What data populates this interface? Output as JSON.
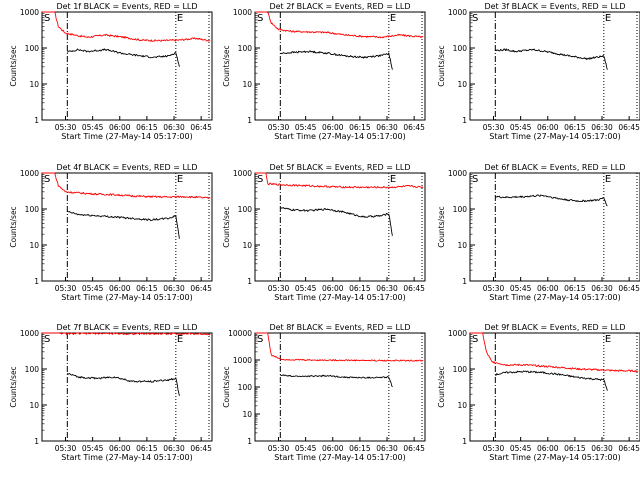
{
  "page": {
    "background": "#ffffff",
    "axis_color": "#000000",
    "events_color": "#000000",
    "lld_color": "#ff0000"
  },
  "x_tick_labels": [
    "05:30",
    "05:45",
    "06:00",
    "06:15",
    "06:30",
    "06:45"
  ],
  "x_axis_label": "Start Time (27-May-14 05:17:00)",
  "y_axis_label": "Counts/sec",
  "marker_start": "S",
  "marker_end": "E",
  "chart_data": [
    {
      "type": "line",
      "title": "Det 1f BLACK = Events, RED = LLD",
      "x_range_minutes": [
        0,
        94
      ],
      "ylim": [
        1,
        1000
      ],
      "y_scale": "log",
      "y_tick_labels": [
        "1",
        "10",
        "100",
        "1000"
      ],
      "start_marker_minute": 14,
      "end_marker_minute": 74,
      "series": [
        {
          "color": "red",
          "points": [
            [
              0,
              1000
            ],
            [
              7,
              1000
            ],
            [
              9,
              400
            ],
            [
              13,
              260
            ],
            [
              20,
              220
            ],
            [
              25,
              200
            ],
            [
              35,
              230
            ],
            [
              45,
              200
            ],
            [
              55,
              165
            ],
            [
              65,
              160
            ],
            [
              75,
              165
            ],
            [
              85,
              185
            ],
            [
              93,
              160
            ]
          ]
        },
        {
          "color": "black",
          "points": [
            [
              14,
              78
            ],
            [
              20,
              90
            ],
            [
              25,
              80
            ],
            [
              35,
              90
            ],
            [
              45,
              70
            ],
            [
              55,
              60
            ],
            [
              62,
              55
            ],
            [
              70,
              60
            ],
            [
              74,
              75
            ],
            [
              76,
              30
            ]
          ]
        }
      ]
    },
    {
      "type": "line",
      "title": "Det 2f BLACK = Events, RED = LLD",
      "x_range_minutes": [
        0,
        94
      ],
      "ylim": [
        1,
        1000
      ],
      "y_scale": "log",
      "y_tick_labels": [
        "1",
        "10",
        "100",
        "1000"
      ],
      "start_marker_minute": 14,
      "end_marker_minute": 74,
      "series": [
        {
          "color": "red",
          "points": [
            [
              0,
              1000
            ],
            [
              7,
              1000
            ],
            [
              9,
              500
            ],
            [
              13,
              330
            ],
            [
              20,
              290
            ],
            [
              30,
              280
            ],
            [
              40,
              270
            ],
            [
              50,
              230
            ],
            [
              60,
              210
            ],
            [
              70,
              200
            ],
            [
              80,
              230
            ],
            [
              93,
              200
            ]
          ]
        },
        {
          "color": "black",
          "points": [
            [
              14,
              70
            ],
            [
              20,
              75
            ],
            [
              30,
              80
            ],
            [
              40,
              72
            ],
            [
              50,
              60
            ],
            [
              60,
              55
            ],
            [
              70,
              62
            ],
            [
              74,
              70
            ],
            [
              76,
              25
            ]
          ]
        }
      ]
    },
    {
      "type": "line",
      "title": "Det 3f BLACK = Events, RED = LLD",
      "x_range_minutes": [
        0,
        94
      ],
      "ylim": [
        1,
        1000
      ],
      "y_scale": "log",
      "y_tick_labels": [
        "1",
        "10",
        "100",
        "1000"
      ],
      "start_marker_minute": 14,
      "end_marker_minute": 74,
      "series": [
        {
          "color": "black",
          "points": [
            [
              14,
              85
            ],
            [
              20,
              90
            ],
            [
              25,
              80
            ],
            [
              35,
              90
            ],
            [
              45,
              75
            ],
            [
              55,
              60
            ],
            [
              65,
              50
            ],
            [
              74,
              60
            ],
            [
              76,
              25
            ]
          ]
        }
      ]
    },
    {
      "type": "line",
      "title": "Det 4f BLACK = Events, RED = LLD",
      "x_range_minutes": [
        0,
        94
      ],
      "ylim": [
        1,
        1000
      ],
      "y_scale": "log",
      "y_tick_labels": [
        "1",
        "10",
        "100",
        "1000"
      ],
      "start_marker_minute": 14,
      "end_marker_minute": 74,
      "series": [
        {
          "color": "red",
          "points": [
            [
              0,
              1000
            ],
            [
              7,
              1000
            ],
            [
              9,
              450
            ],
            [
              13,
              300
            ],
            [
              20,
              280
            ],
            [
              30,
              260
            ],
            [
              40,
              250
            ],
            [
              50,
              230
            ],
            [
              60,
              220
            ],
            [
              70,
              215
            ],
            [
              80,
              220
            ],
            [
              93,
              200
            ]
          ]
        },
        {
          "color": "black",
          "points": [
            [
              14,
              85
            ],
            [
              20,
              70
            ],
            [
              30,
              65
            ],
            [
              40,
              60
            ],
            [
              50,
              55
            ],
            [
              60,
              50
            ],
            [
              70,
              55
            ],
            [
              74,
              65
            ],
            [
              76,
              15
            ]
          ]
        }
      ]
    },
    {
      "type": "line",
      "title": "Det 5f BLACK = Events, RED = LLD",
      "x_range_minutes": [
        0,
        94
      ],
      "ylim": [
        1,
        1000
      ],
      "y_scale": "log",
      "y_tick_labels": [
        "1",
        "10",
        "100",
        "1000"
      ],
      "start_marker_minute": 14,
      "end_marker_minute": 74,
      "series": [
        {
          "color": "red",
          "points": [
            [
              0,
              1000
            ],
            [
              6,
              1000
            ],
            [
              7,
              500
            ],
            [
              15,
              470
            ],
            [
              30,
              440
            ],
            [
              45,
              410
            ],
            [
              60,
              400
            ],
            [
              75,
              400
            ],
            [
              85,
              430
            ],
            [
              93,
              400
            ]
          ]
        },
        {
          "color": "black",
          "points": [
            [
              14,
              110
            ],
            [
              20,
              95
            ],
            [
              30,
              90
            ],
            [
              40,
              100
            ],
            [
              50,
              80
            ],
            [
              60,
              60
            ],
            [
              70,
              65
            ],
            [
              74,
              75
            ],
            [
              76,
              18
            ]
          ]
        }
      ]
    },
    {
      "type": "line",
      "title": "Det 6f BLACK = Events, RED = LLD",
      "x_range_minutes": [
        0,
        94
      ],
      "ylim": [
        1,
        1000
      ],
      "y_scale": "log",
      "y_tick_labels": [
        "1",
        "10",
        "100",
        "1000"
      ],
      "start_marker_minute": 14,
      "end_marker_minute": 74,
      "series": [
        {
          "color": "black",
          "points": [
            [
              14,
              220
            ],
            [
              20,
              210
            ],
            [
              30,
              220
            ],
            [
              40,
              240
            ],
            [
              50,
              190
            ],
            [
              60,
              165
            ],
            [
              70,
              175
            ],
            [
              74,
              200
            ],
            [
              76,
              120
            ]
          ]
        }
      ]
    },
    {
      "type": "line",
      "title": "Det 7f BLACK = Events, RED = LLD",
      "x_range_minutes": [
        0,
        94
      ],
      "ylim": [
        1,
        1000
      ],
      "y_scale": "log",
      "y_tick_labels": [
        "1",
        "10",
        "100",
        "1000"
      ],
      "start_marker_minute": 14,
      "end_marker_minute": 74,
      "series": [
        {
          "color": "red",
          "points": [
            [
              0,
              1000
            ],
            [
              10,
              1000
            ],
            [
              14,
              950
            ],
            [
              30,
              980
            ],
            [
              50,
              950
            ],
            [
              70,
              960
            ],
            [
              93,
              940
            ]
          ]
        },
        {
          "color": "black",
          "points": [
            [
              14,
              75
            ],
            [
              20,
              60
            ],
            [
              30,
              55
            ],
            [
              40,
              60
            ],
            [
              50,
              45
            ],
            [
              60,
              45
            ],
            [
              70,
              50
            ],
            [
              74,
              55
            ],
            [
              76,
              18
            ]
          ]
        }
      ]
    },
    {
      "type": "line",
      "title": "Det 8f BLACK = Events, RED = LLD",
      "x_range_minutes": [
        0,
        94
      ],
      "ylim": [
        1,
        10000
      ],
      "y_scale": "log",
      "y_tick_labels": [
        "1",
        "10",
        "100",
        "1000",
        "10000"
      ],
      "start_marker_minute": 14,
      "end_marker_minute": 74,
      "series": [
        {
          "color": "red",
          "points": [
            [
              0,
              10000
            ],
            [
              7,
              10000
            ],
            [
              9,
              1500
            ],
            [
              15,
              1050
            ],
            [
              30,
              1000
            ],
            [
              50,
              980
            ],
            [
              70,
              950
            ],
            [
              93,
              950
            ]
          ]
        },
        {
          "color": "black",
          "points": [
            [
              14,
              280
            ],
            [
              20,
              250
            ],
            [
              30,
              250
            ],
            [
              40,
              260
            ],
            [
              50,
              230
            ],
            [
              60,
              220
            ],
            [
              70,
              225
            ],
            [
              74,
              230
            ],
            [
              76,
              100
            ]
          ]
        }
      ]
    },
    {
      "type": "line",
      "title": "Det 9f BLACK = Events, RED = LLD",
      "x_range_minutes": [
        0,
        94
      ],
      "ylim": [
        1,
        1000
      ],
      "y_scale": "log",
      "y_tick_labels": [
        "1",
        "10",
        "100",
        "1000"
      ],
      "start_marker_minute": 14,
      "end_marker_minute": 74,
      "series": [
        {
          "color": "red",
          "points": [
            [
              0,
              1000
            ],
            [
              7,
              1000
            ],
            [
              9,
              300
            ],
            [
              12,
              160
            ],
            [
              20,
              130
            ],
            [
              30,
              130
            ],
            [
              40,
              120
            ],
            [
              50,
              110
            ],
            [
              60,
              100
            ],
            [
              70,
              95
            ],
            [
              80,
              90
            ],
            [
              93,
              88
            ]
          ]
        },
        {
          "color": "black",
          "points": [
            [
              14,
              70
            ],
            [
              20,
              80
            ],
            [
              30,
              85
            ],
            [
              40,
              80
            ],
            [
              50,
              70
            ],
            [
              60,
              58
            ],
            [
              70,
              52
            ],
            [
              74,
              50
            ],
            [
              76,
              25
            ]
          ]
        }
      ]
    }
  ]
}
